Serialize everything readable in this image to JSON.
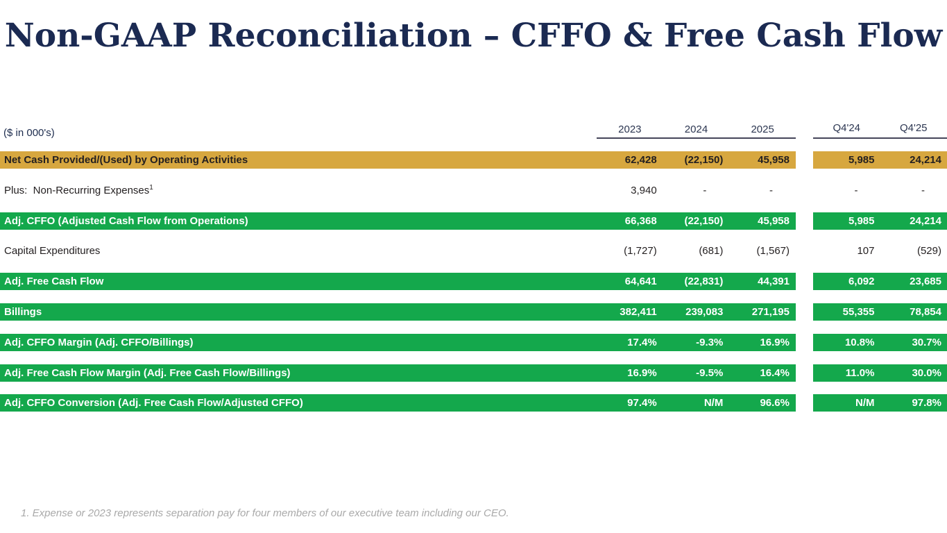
{
  "title": "Non-GAAP Reconciliation – CFFO & Free Cash Flow",
  "colors": {
    "gold_bar": "#D7A73F",
    "green_bar": "#14A84C",
    "title_navy": "#1B2A52",
    "footnote_gray": "#A9A9A9"
  },
  "table": {
    "units_label": "($ in 000's)",
    "annual_headers": [
      "2023",
      "2024",
      "2025"
    ],
    "quarter_headers": [
      "Q4'24",
      "Q4'25"
    ],
    "rows": [
      {
        "label": "Net Cash Provided/(Used) by Operating Activities",
        "style": "gold",
        "annual": [
          "62,428",
          "(22,150)",
          "45,958"
        ],
        "quarter": [
          "5,985",
          "24,214"
        ]
      },
      {
        "label": "Plus:  Non-Recurring Expenses",
        "footnote_ref": "1",
        "style": "plain",
        "annual": [
          "3,940",
          "-",
          "-"
        ],
        "quarter": [
          "-",
          "-"
        ]
      },
      {
        "label": "Adj. CFFO (Adjusted Cash Flow from Operations)",
        "style": "green",
        "annual": [
          "66,368",
          "(22,150)",
          "45,958"
        ],
        "quarter": [
          "5,985",
          "24,214"
        ]
      },
      {
        "label": "Capital Expenditures",
        "style": "plain",
        "annual": [
          "(1,727)",
          "(681)",
          "(1,567)"
        ],
        "quarter": [
          "107",
          "(529)"
        ]
      },
      {
        "label": "Adj. Free Cash Flow",
        "style": "green",
        "annual": [
          "64,641",
          "(22,831)",
          "44,391"
        ],
        "quarter": [
          "6,092",
          "23,685"
        ]
      },
      {
        "label": "Billings",
        "style": "green",
        "annual": [
          "382,411",
          "239,083",
          "271,195"
        ],
        "quarter": [
          "55,355",
          "78,854"
        ]
      },
      {
        "label": "Adj. CFFO Margin (Adj. CFFO/Billings)",
        "style": "green",
        "annual": [
          "17.4%",
          "-9.3%",
          "16.9%"
        ],
        "quarter": [
          "10.8%",
          "30.7%"
        ]
      },
      {
        "label": "Adj. Free Cash Flow Margin (Adj. Free Cash Flow/Billings)",
        "style": "green",
        "annual": [
          "16.9%",
          "-9.5%",
          "16.4%"
        ],
        "quarter": [
          "11.0%",
          "30.0%"
        ]
      },
      {
        "label": "Adj. CFFO Conversion (Adj. Free Cash Flow/Adjusted CFFO)",
        "style": "green",
        "annual": [
          "97.4%",
          "N/M",
          "96.6%"
        ],
        "quarter": [
          "N/M",
          "97.8%"
        ]
      }
    ]
  },
  "footnote": "1. Expense or 2023 represents separation pay for four members of our executive team including our CEO."
}
